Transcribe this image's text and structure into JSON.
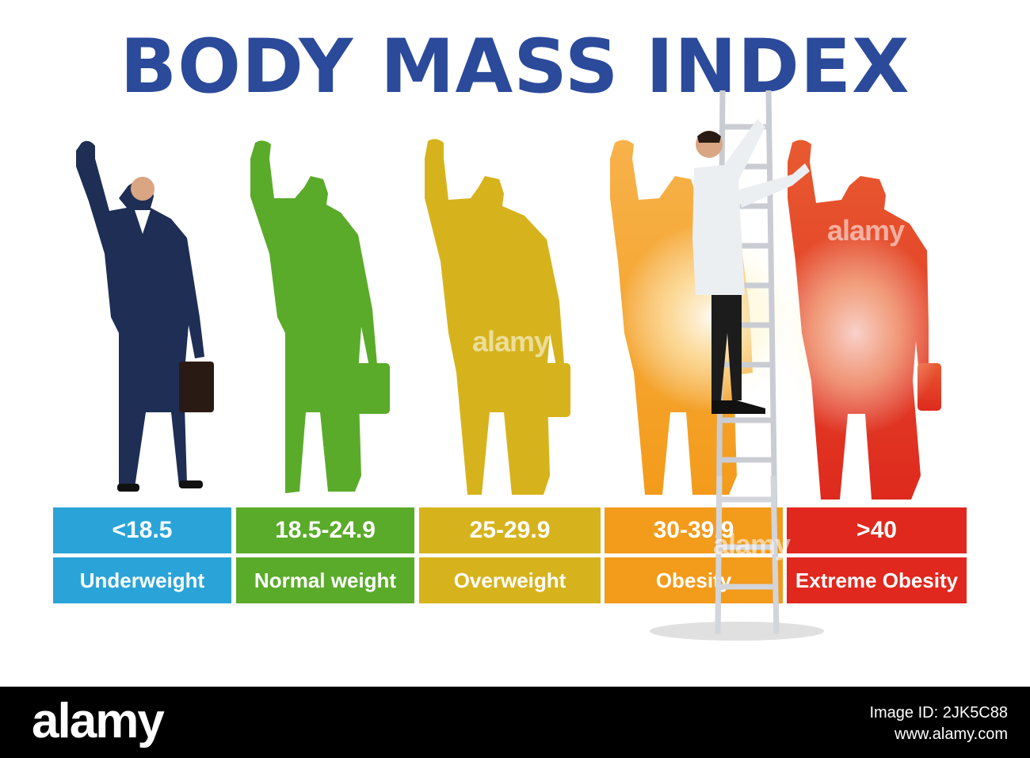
{
  "title": "BODY MASS INDEX",
  "categories": [
    {
      "range": "<18.5",
      "label": "Underweight",
      "color": "#2aa4d8"
    },
    {
      "range": "18.5-24.9",
      "label": "Normal weight",
      "color": "#5aab2a"
    },
    {
      "range": "25-29.9",
      "label": "Overweight",
      "color": "#d6b31c"
    },
    {
      "range": "30-39.9",
      "label": "Obesity",
      "color": "#f39b1b"
    },
    {
      "range": ">40",
      "label": "Extreme Obesity",
      "color": "#e0281e"
    }
  ],
  "figures": [
    {
      "kind": "businessman-photo",
      "color": "#1e2e55"
    },
    {
      "kind": "silhouette-normal",
      "color": "#5aab2a"
    },
    {
      "kind": "silhouette-overweight",
      "color": "#d6b31c"
    },
    {
      "kind": "silhouette-obese",
      "color": "#f5a21e"
    },
    {
      "kind": "silhouette-extreme",
      "color": "#e0281e"
    }
  ],
  "watermark_text": "alamy",
  "footer": {
    "logo": "alamy",
    "image_id": "Image ID: 2JK5C88",
    "url": "www.alamy.com"
  }
}
